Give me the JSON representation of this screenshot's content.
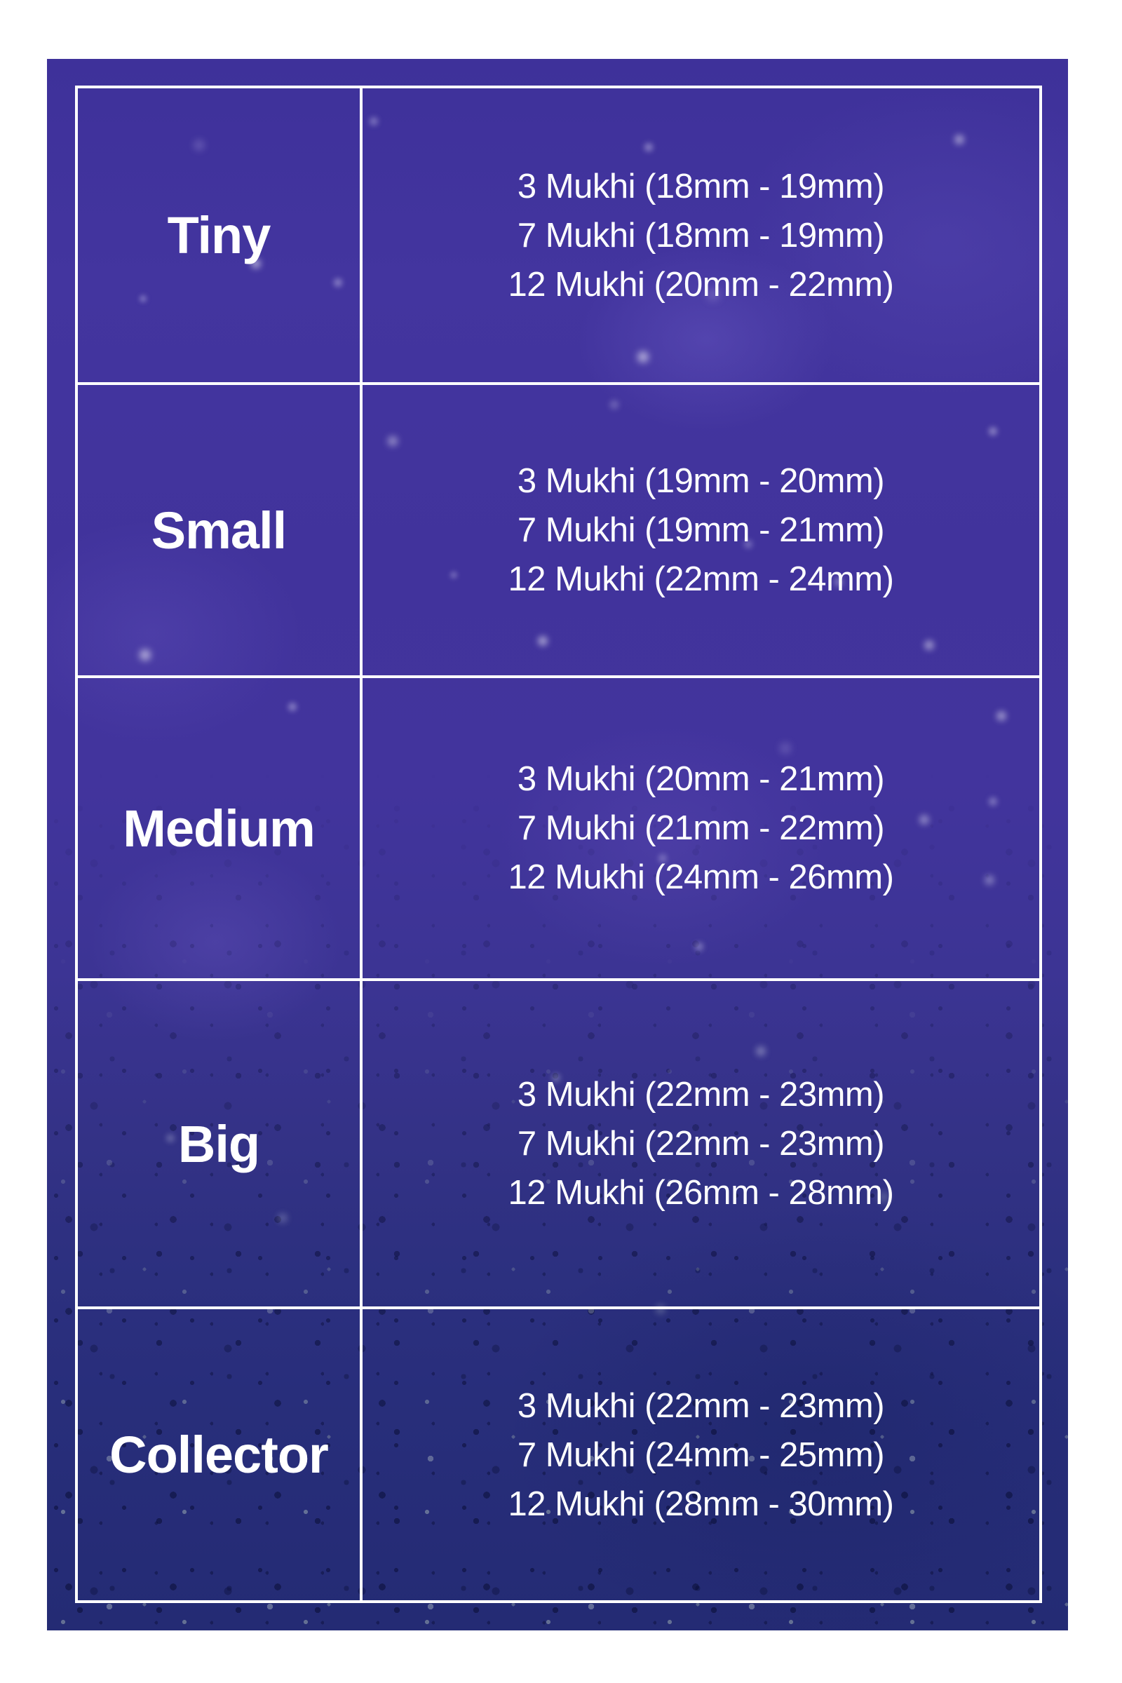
{
  "chart_data": {
    "type": "table",
    "rows": [
      {
        "label": "Tiny",
        "sizes": [
          "3 Mukhi (18mm - 19mm)",
          "7 Mukhi (18mm - 19mm)",
          "12 Mukhi (20mm - 22mm)"
        ]
      },
      {
        "label": "Small",
        "sizes": [
          "3 Mukhi (19mm - 20mm)",
          "7 Mukhi (19mm - 21mm)",
          "12 Mukhi (22mm - 24mm)"
        ]
      },
      {
        "label": "Medium",
        "sizes": [
          "3 Mukhi (20mm - 21mm)",
          "7 Mukhi (21mm - 22mm)",
          "12 Mukhi (24mm - 26mm)"
        ]
      },
      {
        "label": "Big",
        "sizes": [
          "3 Mukhi (22mm - 23mm)",
          "7 Mukhi (22mm - 23mm)",
          "12 Mukhi (26mm - 28mm)"
        ]
      },
      {
        "label": "Collector",
        "sizes": [
          "3 Mukhi (22mm - 23mm)",
          "7 Mukhi (24mm - 25mm)",
          "12 Mukhi (28mm - 30mm)"
        ]
      }
    ],
    "layout": {
      "grid": "on",
      "columns_count": 2,
      "rows_count": 5
    }
  },
  "colors": {
    "page_background": "#ffffff",
    "photo_top": "#41339c",
    "photo_bottom": "#242b74",
    "grid_line": "#ffffff",
    "text": "#ffffff"
  }
}
